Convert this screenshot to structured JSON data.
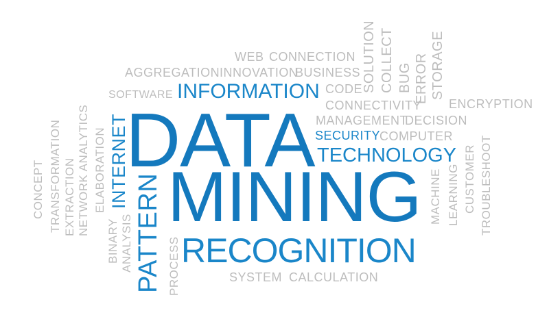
{
  "cloud": {
    "data": "DATA",
    "mining": "MINING",
    "recognition": "RECOGNITION",
    "information": "INFORMATION",
    "technology": "TECHNOLOGY",
    "security": "SECURITY",
    "pattern": "PATTERN",
    "internet": "INTERNET",
    "web": "WEB",
    "connection": "CONNECTION",
    "aggregation": "AGGREGATION",
    "innovation": "INNOVATION",
    "business": "BUSINESS",
    "software": "SOFTWARE",
    "code": "CODE",
    "connectivity": "CONNECTIVITY",
    "solution": "SOLUTION",
    "collect": "COLLECT",
    "bug": "BUG",
    "error": "ERROR",
    "storage": "STORAGE",
    "encryption": "ENCRYPTION",
    "management": "MANAGEMENT",
    "decision": "DECISION",
    "computer": "COMPUTER",
    "system": "SYSTEM",
    "calculation": "CALCULATION",
    "concept": "CONCEPT",
    "transformation": "TRANSFORMATION",
    "extraction": "EXTRACTION",
    "network_analytics": "NETWORK ANALYTICS",
    "elaboration": "ELABORATION",
    "binary": "BINARY",
    "analysis": "ANALYSIS",
    "process": "PROCESS",
    "machine": "MACHINE",
    "learning": "LEARNING",
    "customer": "CUSTOMER",
    "troubleshoot": "TROUBLESHOOT"
  },
  "colors": {
    "primary_blue": "#1479bd",
    "secondary_blue": "#1a86c9",
    "gray": "#bdbdbd",
    "background": "#ffffff"
  }
}
